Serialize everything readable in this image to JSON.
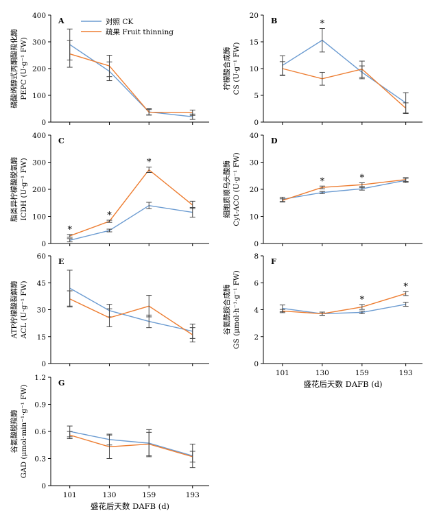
{
  "legend": {
    "ck_label": "对照 CK",
    "ft_label": "疏果 Fruit thinning"
  },
  "colors": {
    "ck": "#6b9bd1",
    "ft": "#ed7d31",
    "axis": "#000000"
  },
  "chart_data": [
    {
      "panel": "A",
      "type": "line",
      "ylabel_cn": "磷酸烯醇式丙酮酸羧化酶",
      "ylabel_en": "PEPC (U·g⁻¹ FW)",
      "xlabel": "",
      "x": [
        "101",
        "130",
        "159",
        "193"
      ],
      "ylim": [
        0,
        400
      ],
      "yticks": [
        "0",
        "100",
        "200",
        "300",
        "400"
      ],
      "xticklabels_shown": false,
      "series": [
        {
          "name": "对照 CK",
          "values": [
            290,
            190,
            38,
            20
          ],
          "errors": [
            58,
            35,
            12,
            10
          ]
        },
        {
          "name": "疏果 Fruit thinning",
          "values": [
            255,
            210,
            37,
            35
          ],
          "errors": [
            50,
            40,
            10,
            10
          ]
        }
      ],
      "significance": []
    },
    {
      "panel": "B",
      "type": "line",
      "ylabel_cn": "柠檬酸合成酶",
      "ylabel_en": "CS (U·g⁻¹ FW)",
      "xlabel": "",
      "x": [
        "101",
        "130",
        "159",
        "193"
      ],
      "ylim": [
        0,
        20
      ],
      "yticks": [
        "0",
        "5",
        "10",
        "15",
        "20"
      ],
      "xticklabels_shown": false,
      "series": [
        {
          "name": "对照 CK",
          "values": [
            10.6,
            15.3,
            9.3,
            3.6
          ],
          "errors": [
            1.8,
            2.2,
            1.2,
            1.9
          ]
        },
        {
          "name": "疏果 Fruit thinning",
          "values": [
            10.0,
            8.1,
            9.9,
            2.6
          ],
          "errors": [
            1.3,
            1.2,
            1.5,
            1.0
          ]
        }
      ],
      "significance": [
        {
          "x": "130",
          "label": "*"
        }
      ]
    },
    {
      "panel": "C",
      "type": "line",
      "ylabel_cn": "脂类异柠檬酸脱氢酶",
      "ylabel_en": "ICDH (U·g⁻¹ FW)",
      "xlabel": "",
      "x": [
        "101",
        "130",
        "159",
        "193"
      ],
      "ylim": [
        0,
        400
      ],
      "yticks": [
        "0",
        "100",
        "200",
        "300",
        "400"
      ],
      "xticklabels_shown": false,
      "series": [
        {
          "name": "对照 CK",
          "values": [
            12,
            48,
            140,
            115
          ],
          "errors": [
            6,
            5,
            12,
            18
          ]
        },
        {
          "name": "疏果 Fruit thinning",
          "values": [
            28,
            82,
            272,
            142
          ],
          "errors": [
            5,
            4,
            10,
            14
          ]
        }
      ],
      "significance": [
        {
          "x": "101",
          "label": "*"
        },
        {
          "x": "130",
          "label": "*"
        },
        {
          "x": "159",
          "label": "*"
        }
      ]
    },
    {
      "panel": "D",
      "type": "line",
      "ylabel_cn": "细胞质顺乌头酸酶",
      "ylabel_en": "Cyt-ACO (U·g⁻¹ FW)",
      "xlabel": "",
      "x": [
        "101",
        "130",
        "159",
        "193"
      ],
      "ylim": [
        0,
        40
      ],
      "yticks": [
        "0",
        "10",
        "20",
        "30",
        "40"
      ],
      "xticklabels_shown": false,
      "series": [
        {
          "name": "对照 CK",
          "values": [
            16.3,
            18.8,
            20.2,
            23.3
          ],
          "errors": [
            0.8,
            0.4,
            0.5,
            0.8
          ]
        },
        {
          "name": "疏果 Fruit thinning",
          "values": [
            15.9,
            20.7,
            21.7,
            23.6
          ],
          "errors": [
            0.6,
            0.5,
            0.7,
            0.7
          ]
        }
      ],
      "significance": [
        {
          "x": "130",
          "label": "*"
        },
        {
          "x": "159",
          "label": "*"
        }
      ]
    },
    {
      "panel": "E",
      "type": "line",
      "ylabel_cn": "ATP柠檬酸裂解酶",
      "ylabel_en": "ACL (U·g⁻¹ FW)",
      "xlabel": "",
      "x": [
        "101",
        "130",
        "159",
        "193"
      ],
      "ylim": [
        0,
        60
      ],
      "yticks": [
        "0",
        "15",
        "30",
        "45",
        "60"
      ],
      "xticklabels_shown": false,
      "series": [
        {
          "name": "对照 CK",
          "values": [
            42,
            29.5,
            23.5,
            18
          ],
          "errors": [
            10,
            3.5,
            3.5,
            4
          ]
        },
        {
          "name": "疏果 Fruit thinning",
          "values": [
            36,
            25.5,
            32,
            16
          ],
          "errors": [
            4.5,
            5,
            6,
            4
          ]
        }
      ],
      "significance": []
    },
    {
      "panel": "F",
      "type": "line",
      "ylabel_cn": "谷氨酰胺合成酶",
      "ylabel_en": "GS (μmol·h⁻¹·g⁻¹ FW)",
      "xlabel": "盛花后天数 DAFB (d)",
      "x": [
        "101",
        "130",
        "159",
        "193"
      ],
      "ylim": [
        0,
        8
      ],
      "yticks": [
        "0",
        "2",
        "4",
        "6",
        "8"
      ],
      "xticklabels_shown": true,
      "series": [
        {
          "name": "对照 CK",
          "values": [
            4.1,
            3.7,
            3.8,
            4.4
          ],
          "errors": [
            0.25,
            0.12,
            0.1,
            0.15
          ]
        },
        {
          "name": "疏果 Fruit thinning",
          "values": [
            3.9,
            3.7,
            4.2,
            5.2
          ],
          "errors": [
            0.12,
            0.12,
            0.18,
            0.15
          ]
        }
      ],
      "significance": [
        {
          "x": "159",
          "label": "*"
        },
        {
          "x": "193",
          "label": "*"
        }
      ]
    },
    {
      "panel": "G",
      "type": "line",
      "ylabel_cn": "谷氨酸脱羧酶",
      "ylabel_en": "GAD (μmol·min⁻¹·g⁻¹ FW)",
      "xlabel": "盛花后天数 DAFB (d)",
      "x": [
        "101",
        "130",
        "159",
        "193"
      ],
      "ylim": [
        0,
        1.2
      ],
      "yticks": [
        "0",
        "0.3",
        "0.6",
        "0.9",
        "1.2"
      ],
      "xticklabels_shown": true,
      "series": [
        {
          "name": "对照 CK",
          "values": [
            0.6,
            0.51,
            0.47,
            0.33
          ],
          "errors": [
            0.06,
            0.06,
            0.15,
            0.13
          ]
        },
        {
          "name": "疏果 Fruit thinning",
          "values": [
            0.56,
            0.43,
            0.46,
            0.32
          ],
          "errors": [
            0.04,
            0.13,
            0.13,
            0.06
          ]
        }
      ],
      "significance": []
    }
  ]
}
